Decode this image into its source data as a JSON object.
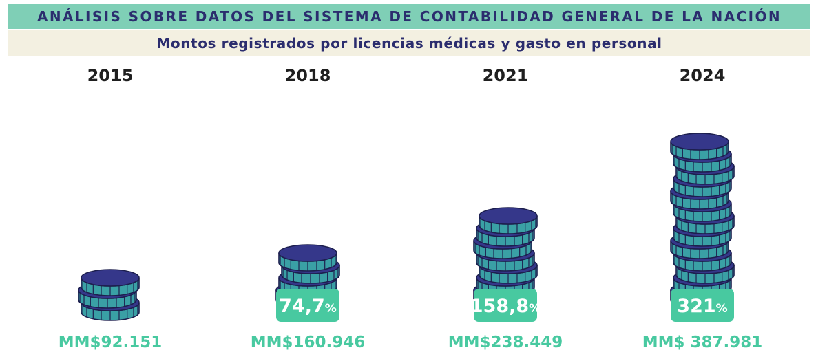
{
  "header": {
    "title": "ANÁLISIS SOBRE DATOS DEL SISTEMA DE CONTABILIDAD GENERAL DE LA NACIÓN",
    "subtitle": "Montos registrados por licencias médicas y gasto en personal"
  },
  "colors": {
    "title_bg": "#7fcfb6",
    "subtitle_bg": "#f3f0e1",
    "text_dark": "#2b2d6e",
    "accent_green": "#48c9a0",
    "coin_face": "#35378a",
    "coin_side": "#3aa0a5",
    "coin_outline": "#1d1f4e"
  },
  "chart_data": {
    "type": "bar",
    "categories": [
      "2015",
      "2018",
      "2021",
      "2024"
    ],
    "values": [
      92151,
      160946,
      238449,
      387981
    ],
    "value_labels": [
      "MM$92.151",
      "MM$160.946",
      "MM$238.449",
      "MM$ 387.981"
    ],
    "growth_labels": [
      "",
      "74,7",
      "158,8",
      "321"
    ],
    "growth_unit": "%",
    "coin_counts": [
      3,
      5,
      8,
      14
    ],
    "title": "Montos registrados por licencias médicas y gasto en personal",
    "xlabel": "",
    "ylabel": ""
  }
}
